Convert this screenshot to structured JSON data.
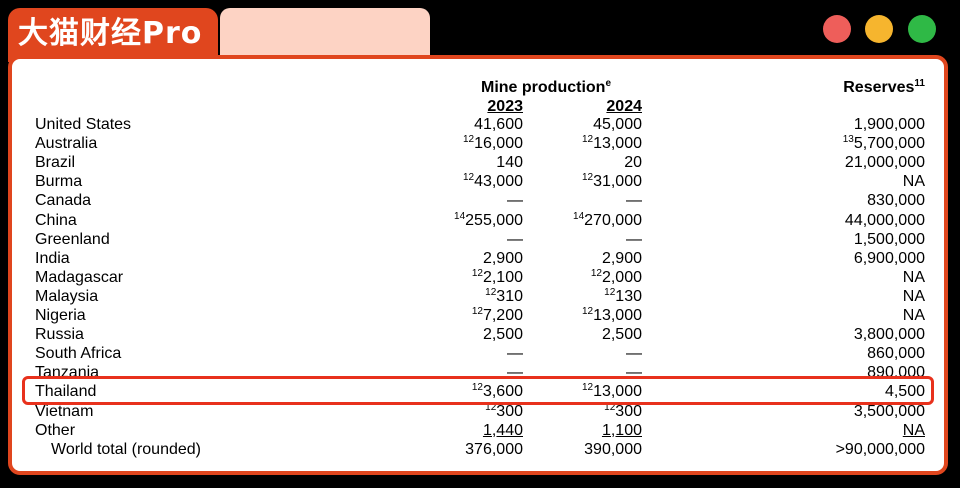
{
  "brand": {
    "title": "大猫财经Pro"
  },
  "window_controls": {
    "close_color": "#ee5e5a",
    "minimize_color": "#f6b52e",
    "maximize_color": "#2fb946"
  },
  "table": {
    "mine_header": "Mine production",
    "mine_header_sup": "e",
    "reserves_header": "Reserves",
    "reserves_header_sup": "11",
    "year1": "2023",
    "year2": "2024",
    "rows": [
      {
        "country": "United States",
        "sup1": "",
        "v2023": "41,600",
        "sup2": "",
        "v2024": "45,000",
        "rsup": "",
        "reserves": "1,900,000"
      },
      {
        "country": "Australia",
        "sup1": "12",
        "v2023": "16,000",
        "sup2": "12",
        "v2024": "13,000",
        "rsup": "13",
        "reserves": "5,700,000"
      },
      {
        "country": "Brazil",
        "sup1": "",
        "v2023": "140",
        "sup2": "",
        "v2024": "20",
        "rsup": "",
        "reserves": "21,000,000"
      },
      {
        "country": "Burma",
        "sup1": "12",
        "v2023": "43,000",
        "sup2": "12",
        "v2024": "31,000",
        "rsup": "",
        "reserves": "NA"
      },
      {
        "country": "Canada",
        "sup1": "",
        "v2023": "—",
        "sup2": "",
        "v2024": "—",
        "rsup": "",
        "reserves": "830,000"
      },
      {
        "country": "China",
        "sup1": "14",
        "v2023": "255,000",
        "sup2": "14",
        "v2024": "270,000",
        "rsup": "",
        "reserves": "44,000,000"
      },
      {
        "country": "Greenland",
        "sup1": "",
        "v2023": "—",
        "sup2": "",
        "v2024": "—",
        "rsup": "",
        "reserves": "1,500,000"
      },
      {
        "country": "India",
        "sup1": "",
        "v2023": "2,900",
        "sup2": "",
        "v2024": "2,900",
        "rsup": "",
        "reserves": "6,900,000"
      },
      {
        "country": "Madagascar",
        "sup1": "12",
        "v2023": "2,100",
        "sup2": "12",
        "v2024": "2,000",
        "rsup": "",
        "reserves": "NA"
      },
      {
        "country": "Malaysia",
        "sup1": "12",
        "v2023": "310",
        "sup2": "12",
        "v2024": "130",
        "rsup": "",
        "reserves": "NA"
      },
      {
        "country": "Nigeria",
        "sup1": "12",
        "v2023": "7,200",
        "sup2": "12",
        "v2024": "13,000",
        "rsup": "",
        "reserves": "NA"
      },
      {
        "country": "Russia",
        "sup1": "",
        "v2023": "2,500",
        "sup2": "",
        "v2024": "2,500",
        "rsup": "",
        "reserves": "3,800,000"
      },
      {
        "country": "South Africa",
        "sup1": "",
        "v2023": "—",
        "sup2": "",
        "v2024": "—",
        "rsup": "",
        "reserves": "860,000"
      },
      {
        "country": "Tanzania",
        "sup1": "",
        "v2023": "—",
        "sup2": "",
        "v2024": "—",
        "rsup": "",
        "reserves": "890,000"
      },
      {
        "country": "Thailand",
        "sup1": "12",
        "v2023": "3,600",
        "sup2": "12",
        "v2024": "13,000",
        "rsup": "",
        "reserves": "4,500"
      },
      {
        "country": "Vietnam",
        "sup1": "12",
        "v2023": "300",
        "sup2": "12",
        "v2024": "300",
        "rsup": "",
        "reserves": "3,500,000"
      },
      {
        "country": "Other",
        "sup1": "",
        "v2023": "1,440",
        "sup2": "",
        "v2024": "1,100",
        "rsup": "",
        "reserves": "NA"
      },
      {
        "country": "World total (rounded)",
        "sup1": "",
        "v2023": "376,000",
        "sup2": "",
        "v2024": "390,000",
        "rsup": "",
        "reserves": ">90,000,000"
      }
    ],
    "highlight_color": "#e8311c"
  }
}
